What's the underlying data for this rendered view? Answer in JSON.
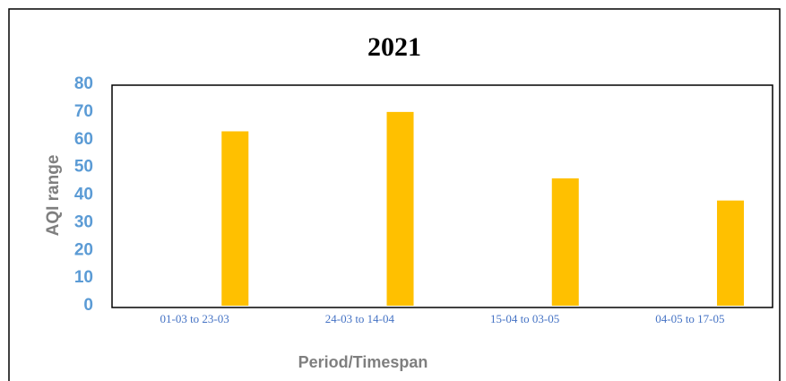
{
  "chart_data": {
    "type": "bar",
    "title": "2021",
    "x_label": "Period/Timespan",
    "y_label": "AQI range",
    "categories": [
      "01-03 to 23-03",
      "24-03 to 14-04",
      "15-04 to 03-05",
      "04-05 to 17-05"
    ],
    "values": [
      63,
      70,
      46,
      38
    ],
    "color": "#ffc000",
    "ylim": [
      0,
      80
    ],
    "yticks": [
      0,
      10,
      20,
      30,
      40,
      50,
      60,
      70,
      80
    ],
    "grid": false
  }
}
